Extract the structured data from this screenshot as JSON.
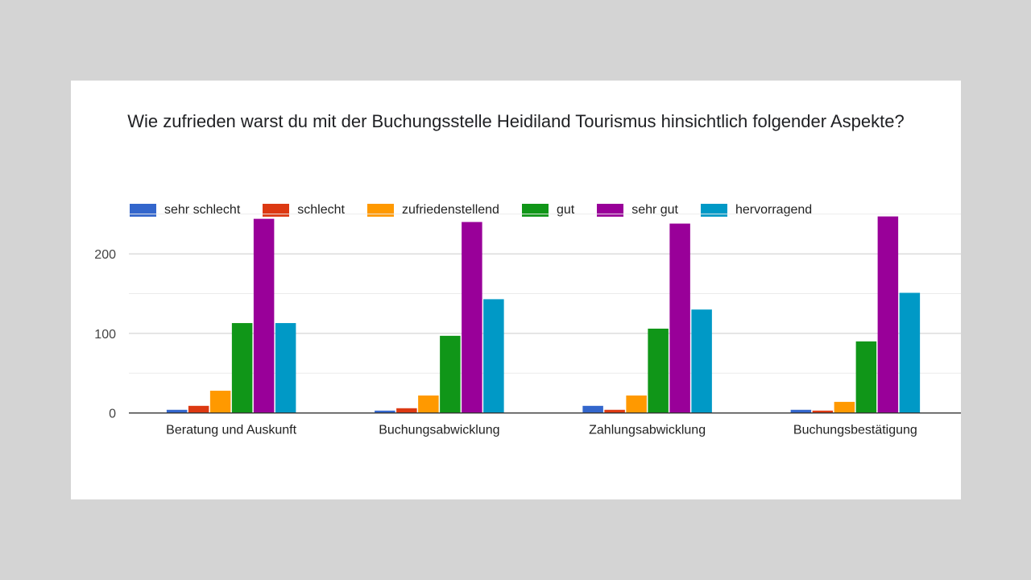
{
  "chart_data": {
    "type": "bar",
    "title": "Wie zufrieden warst du mit der Buchungsstelle Heidiland Tourismus hinsichtlich folgender Aspekte?",
    "xlabel": "",
    "ylabel": "",
    "ylim": [
      0,
      250
    ],
    "yticks": [
      0,
      100,
      200
    ],
    "grid": true,
    "legend_position": "top-left",
    "categories": [
      "Beratung und Auskunft",
      "Buchungsabwicklung",
      "Zahlungsabwicklung",
      "Buchungsbestätigung"
    ],
    "series": [
      {
        "name": "sehr schlecht",
        "color": "#3366cc",
        "values": [
          4,
          3,
          9,
          4
        ]
      },
      {
        "name": "schlecht",
        "color": "#dc3912",
        "values": [
          9,
          6,
          4,
          3
        ]
      },
      {
        "name": "zufriedenstellend",
        "color": "#ff9900",
        "values": [
          28,
          22,
          22,
          14
        ]
      },
      {
        "name": "gut",
        "color": "#109618",
        "values": [
          113,
          97,
          106,
          90
        ]
      },
      {
        "name": "sehr gut",
        "color": "#990099",
        "values": [
          244,
          240,
          238,
          247
        ]
      },
      {
        "name": "hervorragend",
        "color": "#0099c6",
        "values": [
          113,
          143,
          130,
          151
        ]
      }
    ]
  }
}
